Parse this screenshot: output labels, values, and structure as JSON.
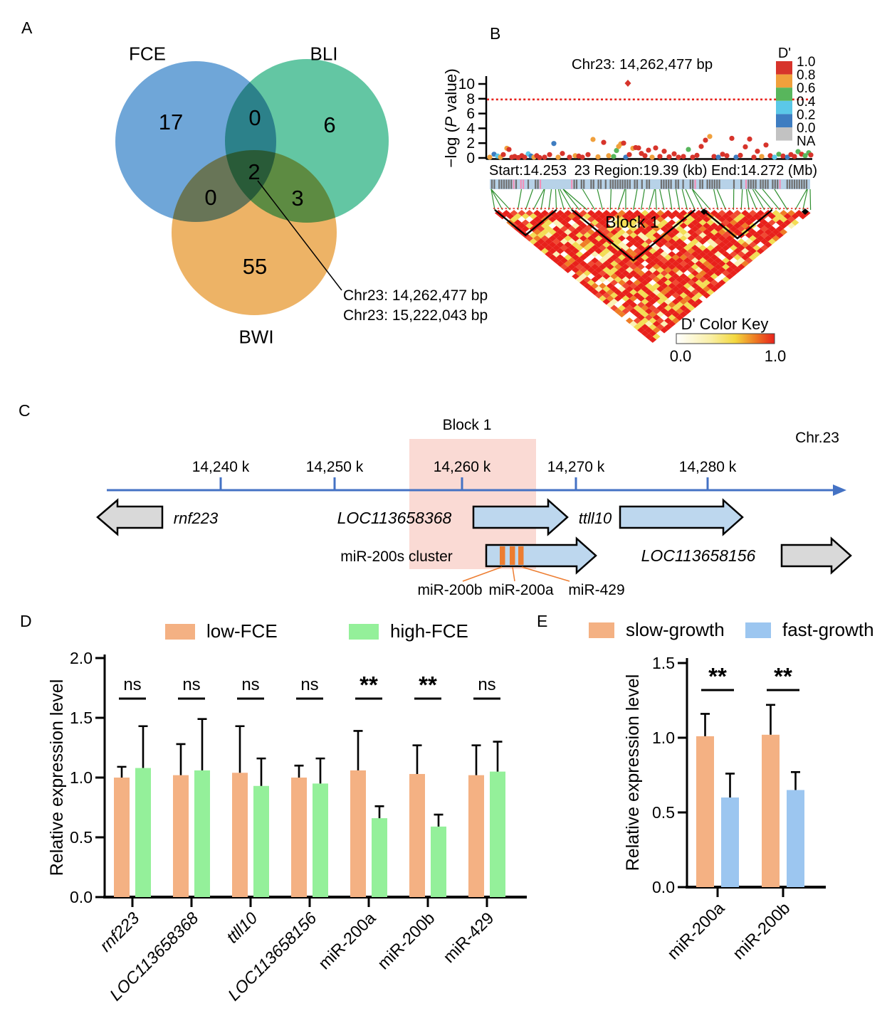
{
  "panels": {
    "A": {
      "letter": "A",
      "set_labels": {
        "fce": "FCE",
        "bli": "BLI",
        "bwi": "BWI"
      },
      "counts": {
        "fce": "17",
        "bli": "6",
        "bwi": "55",
        "fce_bli": "0",
        "fce_bwi": "0",
        "bli_bwi": "3",
        "all": "2"
      },
      "annotation": {
        "line1": "Chr23: 14,262,477 bp",
        "line2": "Chr23: 15,222,043 bp"
      },
      "colors": {
        "fce": "#5696D1",
        "bli": "#48BC93",
        "bwi": "#EAA64B"
      }
    },
    "B": {
      "letter": "B"
    },
    "C": {
      "letter": "C",
      "block_label": "Block 1",
      "chrom_label": "Chr.23",
      "axis_ticks": [
        "14,240 k",
        "14,250 k",
        "14,260 k",
        "14,270 k",
        "14,280 k"
      ],
      "genes": [
        {
          "name": "rnf223",
          "italic": true,
          "fill": "#D9D9D9",
          "direction": "left"
        },
        {
          "name": "LOC113658368",
          "italic": true,
          "fill": "#BDD7EE",
          "direction": "right"
        },
        {
          "name": "ttll10",
          "italic": true,
          "fill": "#BDD7EE",
          "direction": "right"
        },
        {
          "name": "miR-200s cluster",
          "italic": false,
          "fill": "#BDD7EE",
          "direction": "right",
          "stripes": true
        },
        {
          "name": "LOC113658156",
          "italic": true,
          "fill": "#D9D9D9",
          "direction": "right"
        }
      ],
      "mir_labels": [
        "miR-200b",
        "miR-200a",
        "miR-429"
      ],
      "colors": {
        "axis": "#4472C4",
        "block_fill": "#FADAD4",
        "stripe": "#ED7D31"
      }
    },
    "D": {
      "letter": "D",
      "legend": [
        {
          "label": "low-FCE",
          "color": "#F4B183"
        },
        {
          "label": "high-FCE",
          "color": "#94F09A"
        }
      ]
    },
    "E": {
      "letter": "E",
      "legend": [
        {
          "label": "slow-growth",
          "color": "#F4B183"
        },
        {
          "label": "fast-growth",
          "color": "#9CC6F0"
        }
      ]
    }
  },
  "chart_data": [
    {
      "id": "B",
      "type": "scatter",
      "title": "Chr23: 14,262,477 bp",
      "ylabel": {
        "pre": "−log (",
        "italic": "P",
        "post": " value)"
      },
      "yticks": [
        0,
        2,
        4,
        6,
        8,
        10
      ],
      "ylim": [
        0,
        10.8
      ],
      "threshold": 7.9,
      "x_annotations": [
        "Start:14.253",
        "23 Region:19.39 (kb)",
        "End:14.272 (Mb)"
      ],
      "lead_point": {
        "x": 882,
        "value": 10.1,
        "color": "#D7342B"
      },
      "legend": {
        "title": "D'",
        "labels": [
          "1.0",
          "0.8",
          "0.6",
          "0.4",
          "0.2",
          "0.0",
          "NA"
        ],
        "colors": [
          "#D7342B",
          "#F0A03C",
          "#58B65C",
          "#5BC8E8",
          "#3E7DC1",
          "#C2C2C2"
        ]
      },
      "block_label": "Block 1",
      "color_key": {
        "title": "D' Color Key",
        "min": "0.0",
        "max": "1.0"
      },
      "point_colors": {
        "r": "#D7342B",
        "o": "#F0A03C",
        "g": "#58B65C",
        "c": "#5BC8E8",
        "b": "#3E7DC1"
      },
      "points": [
        [
          688,
          0.1,
          "o"
        ],
        [
          694,
          0.5,
          "b"
        ],
        [
          699,
          0.25,
          "c"
        ],
        [
          703,
          0.1,
          "o"
        ],
        [
          707,
          0.45,
          "r"
        ],
        [
          712,
          1.3,
          "o"
        ],
        [
          715,
          1.15,
          "r"
        ],
        [
          719,
          0.1,
          "r"
        ],
        [
          723,
          0.2,
          "r"
        ],
        [
          728,
          0.05,
          "r"
        ],
        [
          733,
          0.3,
          "r"
        ],
        [
          737,
          0.1,
          "r"
        ],
        [
          742,
          0.55,
          "c"
        ],
        [
          746,
          0.25,
          "b"
        ],
        [
          750,
          0.1,
          "o"
        ],
        [
          754,
          0.3,
          "r"
        ],
        [
          758,
          0.05,
          "r"
        ],
        [
          765,
          0.1,
          "r"
        ],
        [
          772,
          0.45,
          "r"
        ],
        [
          778,
          1.95,
          "b"
        ],
        [
          784,
          0.1,
          "o"
        ],
        [
          790,
          0.6,
          "r"
        ],
        [
          800,
          0.1,
          "r"
        ],
        [
          808,
          0.3,
          "o"
        ],
        [
          813,
          0.25,
          "r"
        ],
        [
          818,
          0.1,
          "r"
        ],
        [
          826,
          0.45,
          "r"
        ],
        [
          833,
          2.5,
          "o"
        ],
        [
          840,
          0.15,
          "o"
        ],
        [
          848,
          2.1,
          "r"
        ],
        [
          855,
          0.3,
          "o"
        ],
        [
          862,
          0.2,
          "g"
        ],
        [
          866,
          1.0,
          "g"
        ],
        [
          869,
          1.55,
          "o"
        ],
        [
          872,
          1.9,
          "o"
        ],
        [
          876,
          2.0,
          "r"
        ],
        [
          879,
          0.1,
          "b"
        ],
        [
          884,
          0.45,
          "r"
        ],
        [
          889,
          1.3,
          "o"
        ],
        [
          893,
          1.4,
          "r"
        ],
        [
          897,
          1.35,
          "r"
        ],
        [
          901,
          0.6,
          "r"
        ],
        [
          906,
          0.3,
          "r"
        ],
        [
          911,
          1.05,
          "r"
        ],
        [
          916,
          0.1,
          "o"
        ],
        [
          921,
          1.35,
          "r"
        ],
        [
          927,
          0.2,
          "r"
        ],
        [
          933,
          0.9,
          "r"
        ],
        [
          940,
          0.15,
          "r"
        ],
        [
          947,
          0.55,
          "r"
        ],
        [
          953,
          0.1,
          "r"
        ],
        [
          960,
          0.2,
          "r"
        ],
        [
          967,
          1.15,
          "g"
        ],
        [
          973,
          0.1,
          "r"
        ],
        [
          979,
          0.35,
          "r"
        ],
        [
          985,
          1.55,
          "r"
        ],
        [
          991,
          2.4,
          "r"
        ],
        [
          997,
          2.9,
          "o"
        ],
        [
          1003,
          0.2,
          "r"
        ],
        [
          1009,
          0.1,
          "b"
        ],
        [
          1015,
          0.5,
          "r"
        ],
        [
          1021,
          0.3,
          "r"
        ],
        [
          1028,
          2.65,
          "r"
        ],
        [
          1034,
          0.1,
          "b"
        ],
        [
          1040,
          0.35,
          "r"
        ],
        [
          1047,
          1.5,
          "r"
        ],
        [
          1053,
          2.55,
          "r"
        ],
        [
          1059,
          0.1,
          "r"
        ],
        [
          1064,
          0.9,
          "r"
        ],
        [
          1070,
          0.2,
          "o"
        ],
        [
          1076,
          1.75,
          "r"
        ],
        [
          1082,
          0.3,
          "r"
        ],
        [
          1088,
          0.1,
          "c"
        ],
        [
          1094,
          0.5,
          "g"
        ],
        [
          1100,
          0.25,
          "r"
        ],
        [
          1106,
          0.1,
          "b"
        ],
        [
          1111,
          0.45,
          "r"
        ],
        [
          1116,
          0.2,
          "r"
        ],
        [
          1121,
          0.85,
          "g"
        ],
        [
          1126,
          0.5,
          "r"
        ],
        [
          1131,
          0.3,
          "g"
        ],
        [
          1136,
          0.7,
          "g"
        ],
        [
          1139,
          0.4,
          "r"
        ]
      ]
    },
    {
      "id": "D",
      "type": "bar",
      "ylabel": "Relative expression level",
      "yticks": [
        "0.0",
        "0.5",
        "1.0",
        "1.5",
        "2.0"
      ],
      "ylim": [
        0,
        2
      ],
      "categories": [
        {
          "label": "rnf223",
          "italic": true
        },
        {
          "label": "LOC113658368",
          "italic": true
        },
        {
          "label": "ttll10",
          "italic": true
        },
        {
          "label": "LOC113658156",
          "italic": true
        },
        {
          "label": "miR-200a",
          "italic": false
        },
        {
          "label": "miR-200b",
          "italic": false
        },
        {
          "label": "miR-429",
          "italic": false
        }
      ],
      "series": [
        {
          "name": "low-FCE",
          "color": "#F4B183",
          "values": [
            1.0,
            1.02,
            1.04,
            1.0,
            1.06,
            1.03,
            1.02
          ],
          "errors": [
            0.09,
            0.26,
            0.39,
            0.1,
            0.33,
            0.24,
            0.25
          ]
        },
        {
          "name": "high-FCE",
          "color": "#94F09A",
          "values": [
            1.08,
            1.06,
            0.93,
            0.95,
            0.66,
            0.59,
            1.05
          ],
          "errors": [
            0.35,
            0.43,
            0.23,
            0.21,
            0.1,
            0.1,
            0.25
          ]
        }
      ],
      "significance": [
        "ns",
        "ns",
        "ns",
        "ns",
        "**",
        "**",
        "ns"
      ]
    },
    {
      "id": "E",
      "type": "bar",
      "ylabel": "Relative expression level",
      "yticks": [
        "0.0",
        "0.5",
        "1.0",
        "1.5"
      ],
      "ylim": [
        0,
        1.5
      ],
      "categories": [
        {
          "label": "miR-200a",
          "italic": false
        },
        {
          "label": "miR-200b",
          "italic": false
        }
      ],
      "series": [
        {
          "name": "slow-growth",
          "color": "#F4B183",
          "values": [
            1.01,
            1.02
          ],
          "errors": [
            0.15,
            0.2
          ]
        },
        {
          "name": "fast-growth",
          "color": "#9CC6F0",
          "values": [
            0.6,
            0.65
          ],
          "errors": [
            0.16,
            0.12
          ]
        }
      ],
      "significance": [
        "**",
        "**"
      ]
    }
  ]
}
